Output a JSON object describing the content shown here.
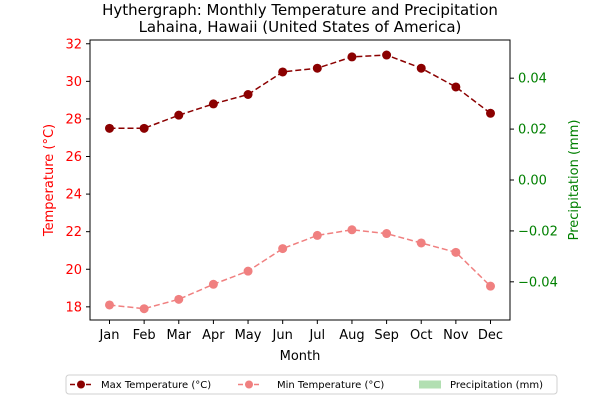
{
  "chart_data": {
    "type": "line",
    "title_line1": "Hythergraph: Monthly Temperature and Precipitation",
    "title_line2": "Lahaina, Hawaii (United States of America)",
    "xlabel": "Month",
    "ylabel_left": "Temperature (°C)",
    "ylabel_right": "Precipitation (mm)",
    "categories": [
      "Jan",
      "Feb",
      "Mar",
      "Apr",
      "May",
      "Jun",
      "Jul",
      "Aug",
      "Sep",
      "Oct",
      "Nov",
      "Dec"
    ],
    "y_left_ticks": [
      "18",
      "20",
      "22",
      "24",
      "26",
      "28",
      "30",
      "32"
    ],
    "y_right_ticks": [
      "−0.04",
      "−0.02",
      "0.00",
      "0.02",
      "0.04"
    ],
    "ylim_left": [
      17.3,
      32.2
    ],
    "ylim_right": [
      -0.055,
      0.055
    ],
    "series": [
      {
        "name": "Max Temperature (°C)",
        "color": "#8b0000",
        "style": "dashed-markers",
        "values": [
          27.5,
          27.5,
          28.2,
          28.8,
          29.3,
          30.5,
          30.7,
          31.3,
          31.4,
          30.7,
          29.7,
          28.3
        ]
      },
      {
        "name": "Min Temperature (°C)",
        "color": "#f08080",
        "style": "dashed-markers",
        "values": [
          18.1,
          17.9,
          18.4,
          19.2,
          19.9,
          21.1,
          21.8,
          22.1,
          21.9,
          21.4,
          20.9,
          19.1
        ]
      },
      {
        "name": "Precipitation (mm)",
        "color": "#b2dfb2",
        "style": "bar",
        "values": [
          0,
          0,
          0,
          0,
          0,
          0,
          0,
          0,
          0,
          0,
          0,
          0
        ]
      }
    ],
    "colors": {
      "left_axis": "#ff0000",
      "right_axis": "#008000"
    },
    "grid": false,
    "legend_placement": "bottom-center"
  }
}
